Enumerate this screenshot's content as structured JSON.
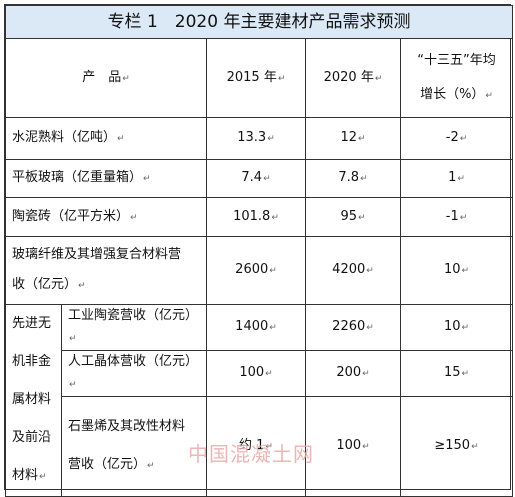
{
  "title": "专栏 1　2020 年主要建材产品需求预测",
  "header": {
    "product": "产　品",
    "y2015": "2015 年",
    "y2020": "2020 年",
    "growth_line1": "“十三五”年均",
    "growth_line2": "增长（%）"
  },
  "rows": [
    {
      "name": "水泥熟料（亿吨）",
      "v2015": "13.3",
      "v2020": "12",
      "growth": "-2"
    },
    {
      "name": "平板玻璃（亿重量箱）",
      "v2015": "7.4",
      "v2020": "7.8",
      "growth": "1"
    },
    {
      "name": "陶瓷砖（亿平方米）",
      "v2015": "101.8",
      "v2020": "95",
      "growth": "-1"
    },
    {
      "name_line1": "玻璃纤维及其增强复合材料营",
      "name_line2": "收（亿元）",
      "v2015": "2600",
      "v2020": "4200",
      "growth": "10"
    }
  ],
  "group": {
    "label_lines": [
      "先进无",
      "机非金",
      "属材料",
      "及前沿",
      "材料"
    ],
    "items": [
      {
        "name": "工业陶瓷营收（亿元）",
        "v2015": "1400",
        "v2020": "2260",
        "growth": "10"
      },
      {
        "name": "人工晶体营收（亿元）",
        "v2015": "100",
        "v2020": "200",
        "growth": "15"
      },
      {
        "name_line1": "石墨烯及其改性材料",
        "name_line2": "营收（亿元）",
        "v2015": "约 1",
        "v2020": "100",
        "growth": "≥150"
      }
    ]
  },
  "watermark": "中国混凝土网",
  "colors": {
    "title_bg": "#dbe9f6",
    "border": "#333333",
    "watermark": "#e8aaa8"
  }
}
